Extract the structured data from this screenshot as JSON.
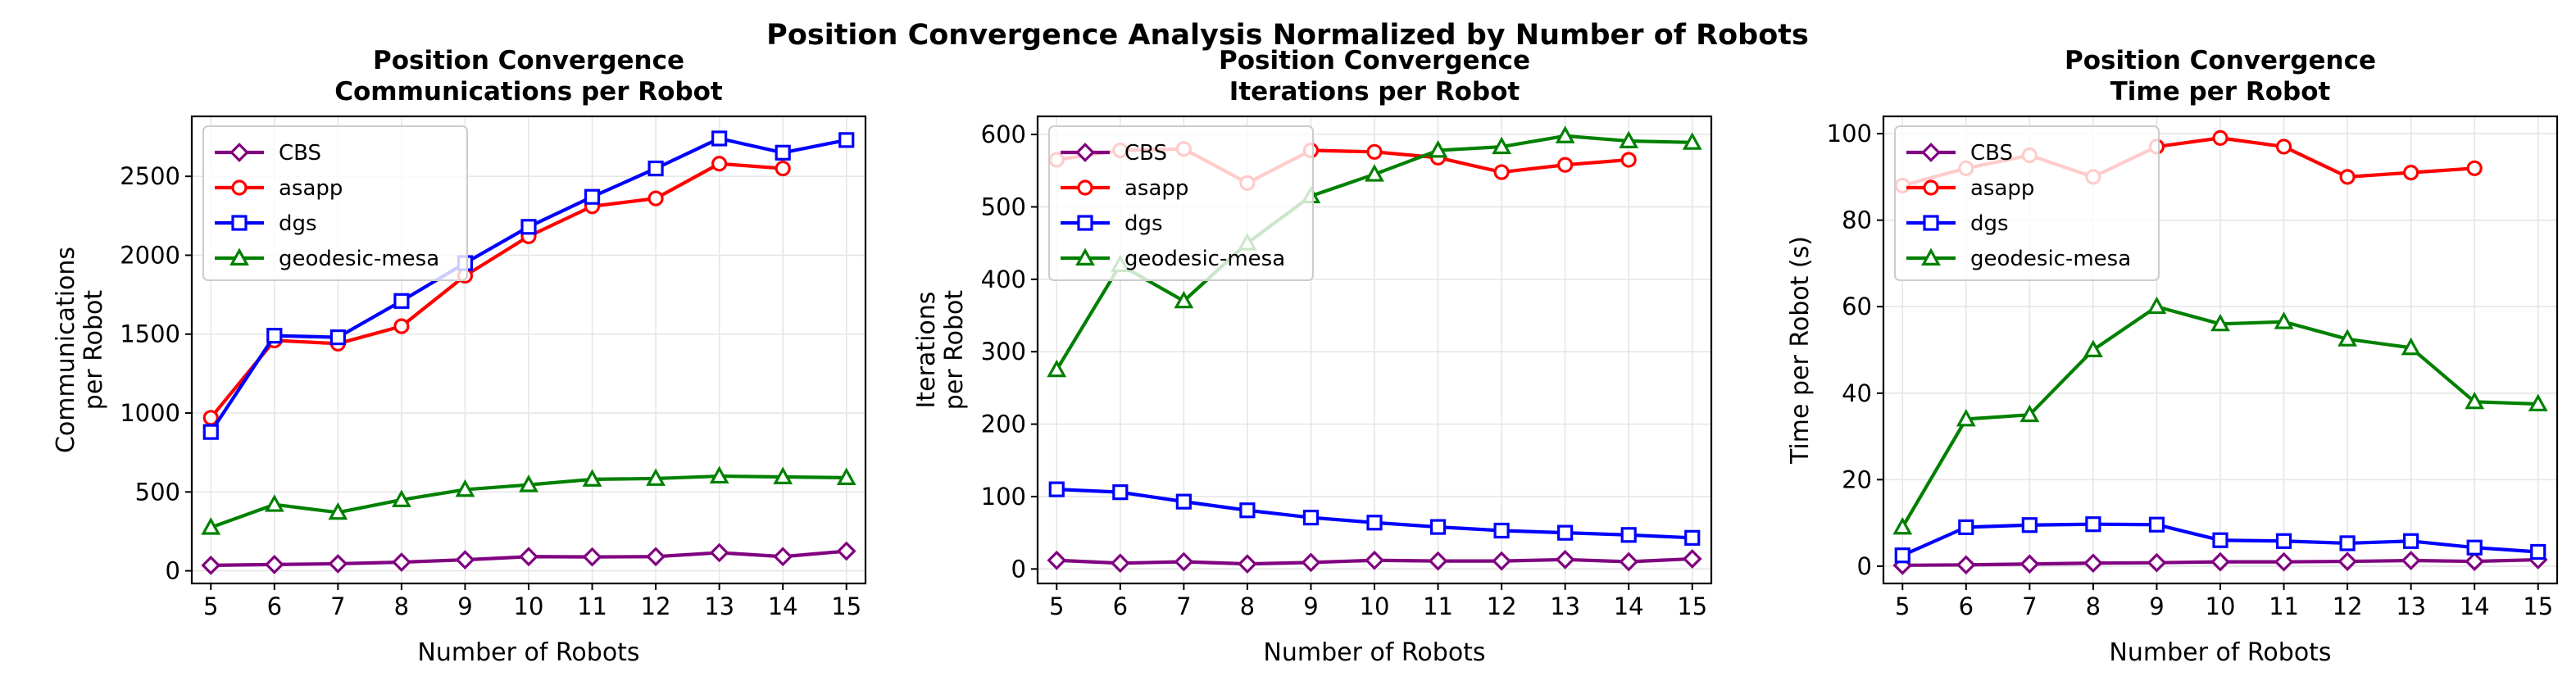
{
  "suptitle": "Position Convergence Analysis Normalized by Number of Robots",
  "colors": {
    "CBS": "#800080",
    "asapp": "#ff0000",
    "dgs": "#0000ff",
    "geodesic-mesa": "#008000"
  },
  "chart_data": [
    {
      "type": "line",
      "title": "Position Convergence\nCommunications per Robot",
      "xlabel": "Number of Robots",
      "ylabel": "Communications\nper Robot",
      "xlim": [
        4.7,
        15.3
      ],
      "ylim": [
        -80,
        2880
      ],
      "xticks": [
        5,
        6,
        7,
        8,
        9,
        10,
        11,
        12,
        13,
        14,
        15
      ],
      "yticks": [
        0,
        500,
        1000,
        1500,
        2000,
        2500
      ],
      "grid": true,
      "legend": "upper-left",
      "series": [
        {
          "name": "CBS",
          "marker": "diamond",
          "x": [
            5,
            6,
            7,
            8,
            9,
            10,
            11,
            12,
            13,
            14,
            15
          ],
          "y": [
            35,
            40,
            45,
            55,
            70,
            90,
            88,
            90,
            115,
            90,
            125
          ]
        },
        {
          "name": "asapp",
          "marker": "circle",
          "x": [
            5,
            6,
            7,
            8,
            9,
            10,
            11,
            12,
            13,
            14
          ],
          "y": [
            970,
            1460,
            1440,
            1550,
            1870,
            2120,
            2310,
            2360,
            2580,
            2550
          ]
        },
        {
          "name": "dgs",
          "marker": "square",
          "x": [
            5,
            6,
            7,
            8,
            9,
            10,
            11,
            12,
            13,
            14,
            15
          ],
          "y": [
            880,
            1490,
            1480,
            1710,
            1950,
            2180,
            2370,
            2550,
            2740,
            2650,
            2730
          ]
        },
        {
          "name": "geodesic-mesa",
          "marker": "triangle",
          "x": [
            5,
            6,
            7,
            8,
            9,
            10,
            11,
            12,
            13,
            14,
            15
          ],
          "y": [
            275,
            420,
            370,
            450,
            515,
            545,
            580,
            585,
            600,
            595,
            590
          ]
        }
      ]
    },
    {
      "type": "line",
      "title": "Position Convergence\nIterations per Robot",
      "xlabel": "Number of Robots",
      "ylabel": "Iterations\nper Robot",
      "xlim": [
        4.7,
        15.3
      ],
      "ylim": [
        -20,
        625
      ],
      "xticks": [
        5,
        6,
        7,
        8,
        9,
        10,
        11,
        12,
        13,
        14,
        15
      ],
      "yticks": [
        0,
        100,
        200,
        300,
        400,
        500,
        600
      ],
      "grid": true,
      "legend": "upper-left",
      "series": [
        {
          "name": "CBS",
          "marker": "diamond",
          "x": [
            5,
            6,
            7,
            8,
            9,
            10,
            11,
            12,
            13,
            14,
            15
          ],
          "y": [
            12,
            8,
            10,
            7,
            9,
            12,
            11,
            11,
            13,
            10,
            14
          ]
        },
        {
          "name": "asapp",
          "marker": "circle",
          "x": [
            5,
            6,
            7,
            8,
            9,
            10,
            11,
            12,
            13,
            14
          ],
          "y": [
            565,
            578,
            580,
            533,
            578,
            576,
            568,
            548,
            558,
            565
          ]
        },
        {
          "name": "dgs",
          "marker": "square",
          "x": [
            5,
            6,
            7,
            8,
            9,
            10,
            11,
            12,
            13,
            14,
            15
          ],
          "y": [
            110,
            106,
            93,
            81,
            71,
            64,
            58,
            53,
            50,
            47,
            43
          ]
        },
        {
          "name": "geodesic-mesa",
          "marker": "triangle",
          "x": [
            5,
            6,
            7,
            8,
            9,
            10,
            11,
            12,
            13,
            14,
            15
          ],
          "y": [
            275,
            420,
            370,
            450,
            515,
            545,
            578,
            583,
            598,
            591,
            589
          ]
        }
      ]
    },
    {
      "type": "line",
      "title": "Position Convergence\nTime per Robot",
      "xlabel": "Number of Robots",
      "ylabel": "Time per Robot (s)",
      "xlim": [
        4.7,
        15.3
      ],
      "ylim": [
        -4,
        104
      ],
      "xticks": [
        5,
        6,
        7,
        8,
        9,
        10,
        11,
        12,
        13,
        14,
        15
      ],
      "yticks": [
        0,
        20,
        40,
        60,
        80,
        100
      ],
      "grid": true,
      "legend": "upper-left",
      "series": [
        {
          "name": "CBS",
          "marker": "diamond",
          "x": [
            5,
            6,
            7,
            8,
            9,
            10,
            11,
            12,
            13,
            14,
            15
          ],
          "y": [
            0.2,
            0.3,
            0.5,
            0.7,
            0.8,
            1.0,
            1.0,
            1.1,
            1.3,
            1.1,
            1.5
          ]
        },
        {
          "name": "asapp",
          "marker": "circle",
          "x": [
            5,
            6,
            7,
            8,
            9,
            10,
            11,
            12,
            13,
            14
          ],
          "y": [
            88,
            92,
            95,
            90,
            97,
            99,
            97,
            90,
            91,
            92
          ]
        },
        {
          "name": "dgs",
          "marker": "square",
          "x": [
            5,
            6,
            7,
            8,
            9,
            10,
            11,
            12,
            13,
            14,
            15
          ],
          "y": [
            2.5,
            9,
            9.5,
            9.7,
            9.6,
            6,
            5.8,
            5.3,
            5.8,
            4.3,
            3.3
          ]
        },
        {
          "name": "geodesic-mesa",
          "marker": "triangle",
          "x": [
            5,
            6,
            7,
            8,
            9,
            10,
            11,
            12,
            13,
            14,
            15
          ],
          "y": [
            9,
            34,
            35,
            50,
            60,
            56,
            56.5,
            52.5,
            50.5,
            38,
            37.5
          ]
        }
      ]
    }
  ]
}
